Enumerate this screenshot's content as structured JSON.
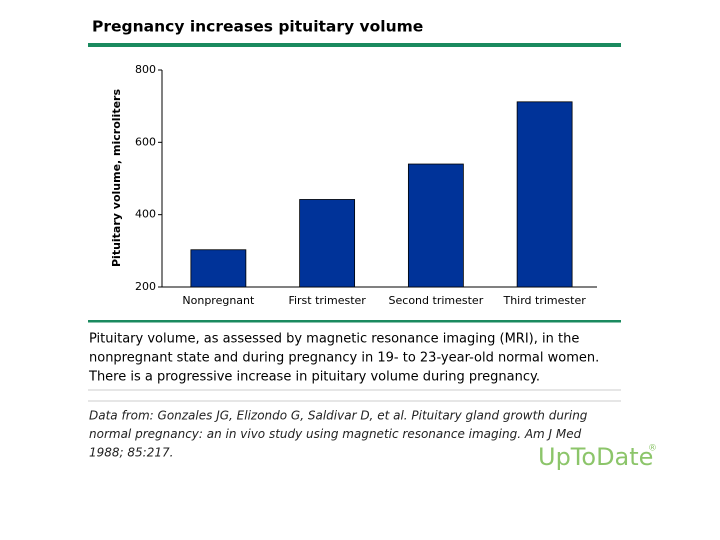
{
  "chart_data": {
    "type": "bar",
    "title": "Pregnancy increases pituitary volume",
    "y_label": "Pituitary volume, microliters",
    "categories": [
      "Nonpregnant",
      "First trimester",
      "Second trimester",
      "Third trimester"
    ],
    "values": [
      303,
      442,
      540,
      712
    ],
    "color": "#003399",
    "ylim": [
      200,
      800
    ],
    "yticks": [
      200,
      400,
      600,
      800
    ],
    "grid": false
  },
  "caption": [
    "Pituitary volume, as assessed by magnetic resonance imaging (MRI), in the",
    "nonpregnant state and during pregnancy in 19- to 23-year-old normal women.",
    "There is a progressive increase in pituitary volume during pregnancy."
  ],
  "citation": [
    "Data from: Gonzales JG, Elizondo G, Saldivar D, et al. Pituitary gland growth during",
    "normal pregnancy: an in vivo study using magnetic resonance imaging. Am J Med",
    "1988; 85:217."
  ],
  "logo": {
    "name": "UpToDate",
    "mark": "®"
  }
}
